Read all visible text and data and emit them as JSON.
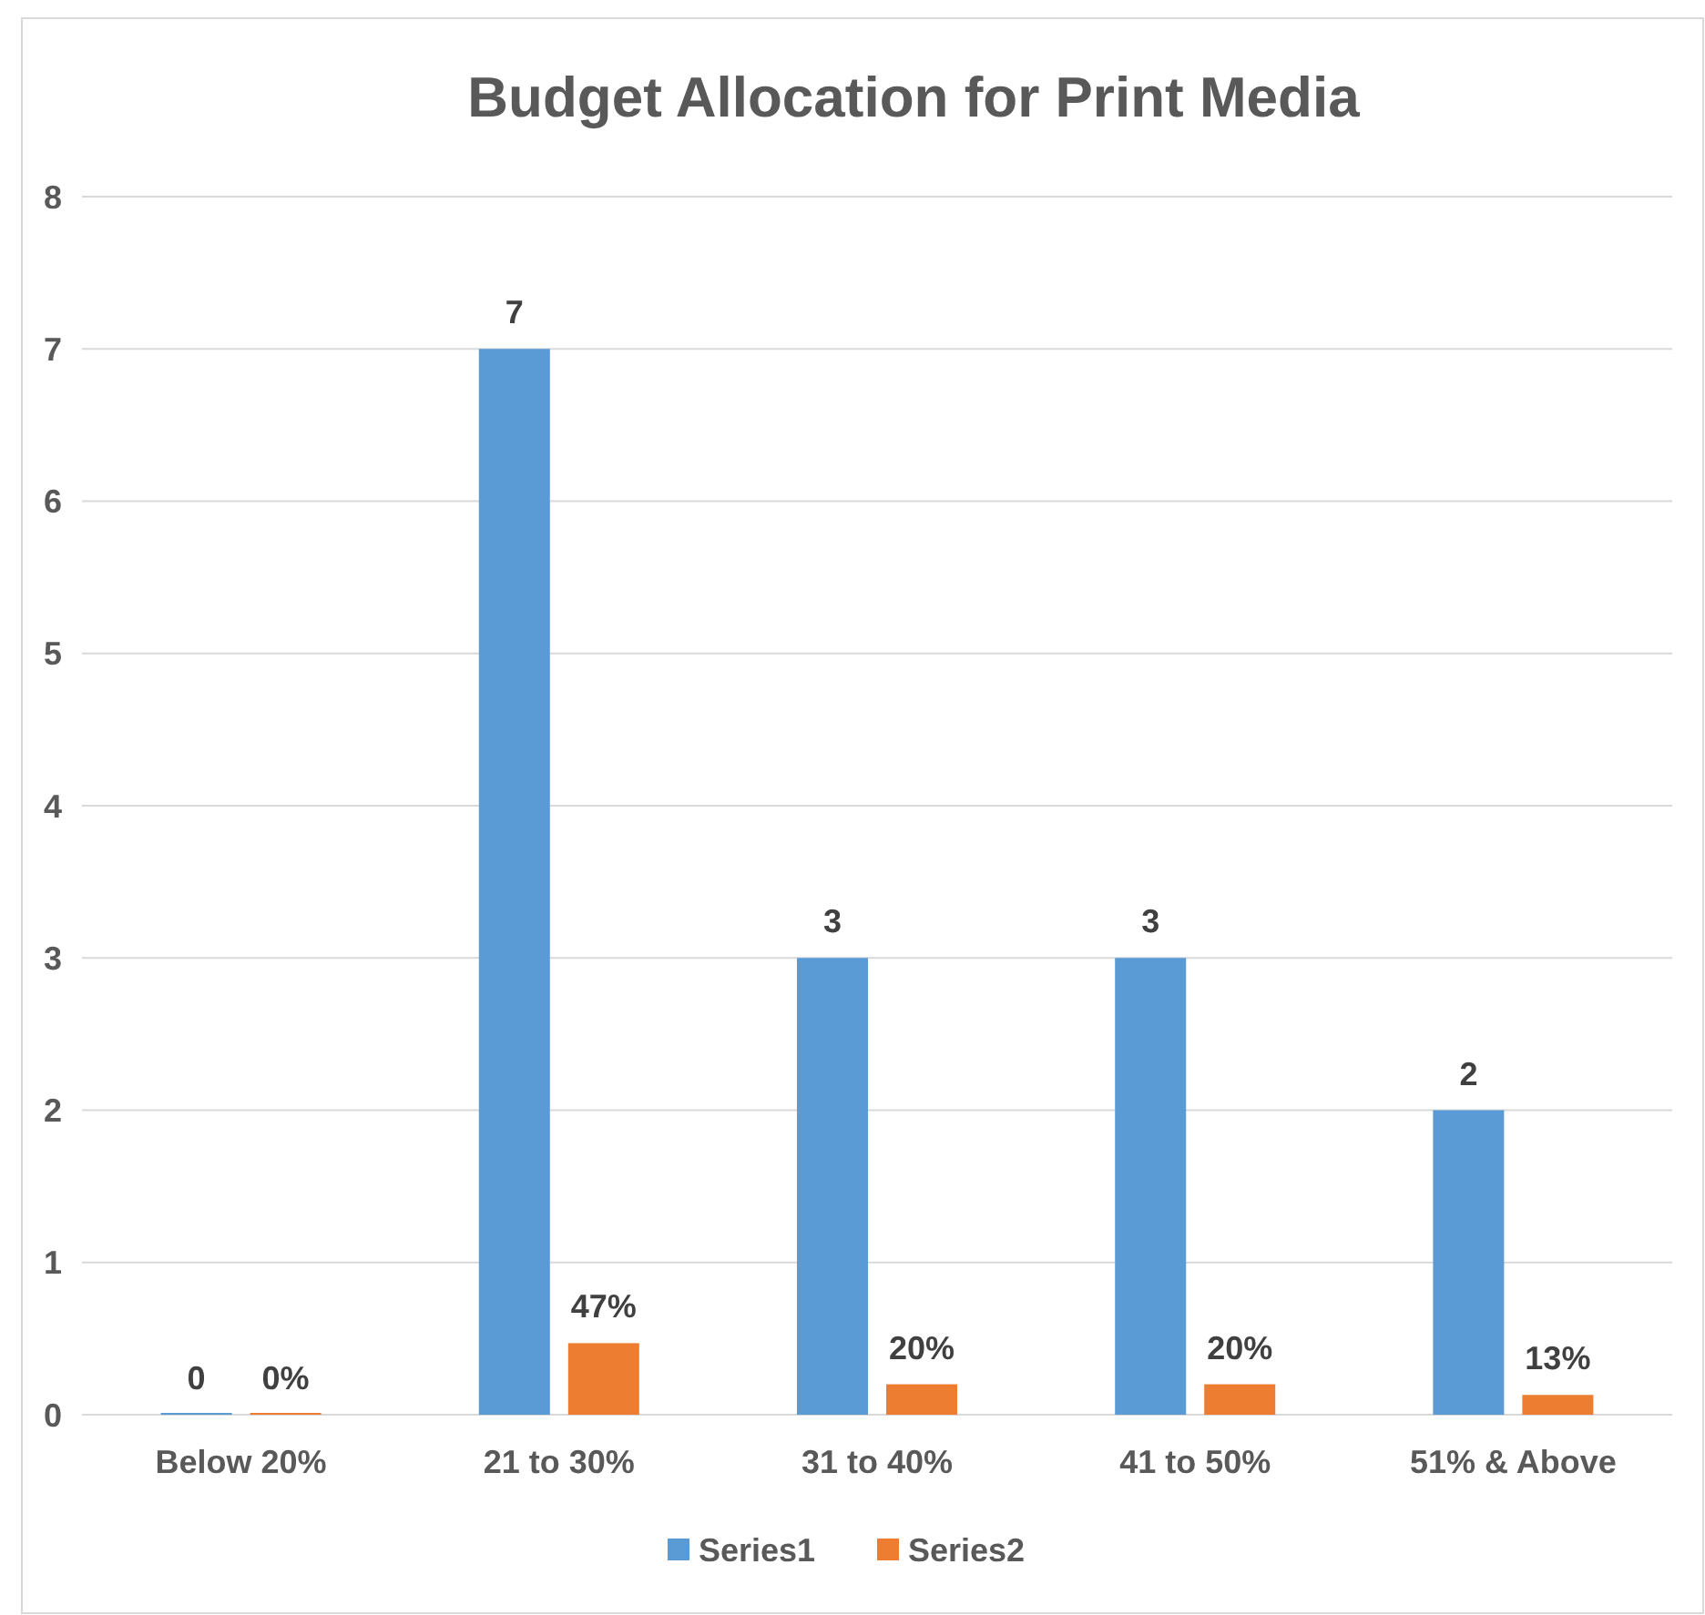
{
  "chart_data": {
    "type": "bar",
    "title": "Budget Allocation for Print Media",
    "categories": [
      "Below 20%",
      "21 to 30%",
      "31 to 40%",
      "41 to 50%",
      "51% & Above"
    ],
    "series": [
      {
        "name": "Series1",
        "color": "#5b9bd5",
        "values": [
          0,
          7,
          3,
          3,
          2
        ],
        "value_labels": [
          "0",
          "7",
          "3",
          "3",
          "2"
        ]
      },
      {
        "name": "Series2",
        "color": "#ed7d31",
        "values": [
          0,
          0.47,
          0.2,
          0.2,
          0.13
        ],
        "value_labels": [
          "0%",
          "47%",
          "20%",
          "20%",
          "13%"
        ]
      }
    ],
    "ylim": [
      0,
      8
    ],
    "yticks": [
      0,
      1,
      2,
      3,
      4,
      5,
      6,
      7,
      8
    ],
    "grid": "y",
    "legend": "bottom"
  }
}
